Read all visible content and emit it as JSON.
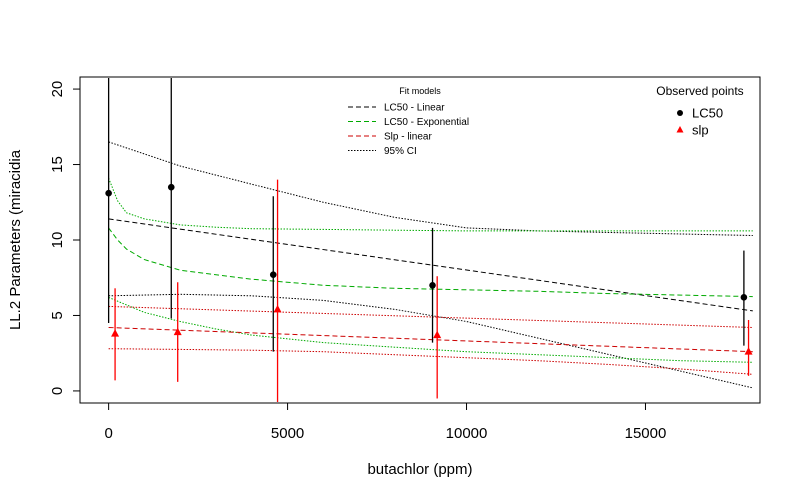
{
  "chart_data": {
    "type": "scatter",
    "title": "",
    "xlabel": "butachlor (ppm)",
    "ylabel": "LL.2 Parameters (miracidia",
    "xlim": [
      -800,
      18200
    ],
    "ylim": [
      -0.8,
      20.8
    ],
    "x_ticks": [
      0,
      5000,
      10000,
      15000
    ],
    "x_tick_labels": [
      "0",
      "5000",
      "10000",
      "15000"
    ],
    "y_ticks": [
      0,
      5,
      10,
      15,
      20
    ],
    "y_tick_labels": [
      "0",
      "5",
      "10",
      "15",
      "20"
    ],
    "grid": false,
    "legend_fit": {
      "title": "Fit models",
      "placement": "top-center",
      "entries": [
        {
          "label": "LC50 - Linear",
          "color": "#000000",
          "style": "dashed"
        },
        {
          "label": "LC50 - Exponential",
          "color": "#00aa00",
          "style": "dashed"
        },
        {
          "label": "Slp - linear",
          "color": "#cc0000",
          "style": "dashed"
        },
        {
          "label": "95% CI",
          "color": "#000000",
          "style": "dotted"
        }
      ]
    },
    "legend_obs": {
      "title": "Observed points",
      "placement": "top-right",
      "entries": [
        {
          "label": "LC50",
          "color": "#000000",
          "marker": "circle"
        },
        {
          "label": "slp",
          "color": "#ff0000",
          "marker": "triangle"
        }
      ]
    },
    "series": [
      {
        "name": "LC50",
        "color": "#000000",
        "marker": "circle",
        "x": [
          0,
          1750,
          4600,
          9050,
          17750
        ],
        "y": [
          13.1,
          13.5,
          7.7,
          7.0,
          6.2
        ],
        "lower": [
          4.5,
          4.8,
          2.6,
          3.2,
          3.0
        ],
        "upper": [
          22.0,
          22.0,
          12.9,
          10.8,
          9.3
        ]
      },
      {
        "name": "slp",
        "color": "#ff0000",
        "marker": "triangle",
        "x": [
          180,
          1930,
          4720,
          9180,
          17880
        ],
        "y": [
          3.8,
          3.9,
          5.4,
          3.7,
          2.6
        ],
        "lower": [
          0.7,
          0.6,
          -1.2,
          -0.5,
          1.0
        ],
        "upper": [
          6.8,
          7.2,
          14.0,
          7.6,
          4.7
        ]
      }
    ],
    "fits": [
      {
        "name": "LC50 - Linear",
        "color": "#000000",
        "dash": "5,3",
        "x": [
          0,
          18000
        ],
        "y": [
          11.4,
          5.3
        ]
      },
      {
        "name": "LC50 - Linear 95% CI upper",
        "color": "#000000",
        "dash": "1.5,1.5",
        "x": [
          0,
          2000,
          4000,
          6000,
          8000,
          10000,
          12000,
          14000,
          16000,
          18000
        ],
        "y": [
          16.5,
          14.9,
          13.7,
          12.5,
          11.5,
          10.8,
          10.6,
          10.5,
          10.4,
          10.3
        ]
      },
      {
        "name": "LC50 - Linear 95% CI lower",
        "color": "#000000",
        "dash": "1.5,1.5",
        "x": [
          0,
          2000,
          4000,
          6000,
          8000,
          10000,
          12000,
          14000,
          16000,
          18000
        ],
        "y": [
          6.3,
          6.4,
          6.3,
          6.0,
          5.4,
          4.6,
          3.5,
          2.4,
          1.3,
          0.2
        ]
      },
      {
        "name": "LC50 - Exponential",
        "color": "#00aa00",
        "dash": "5,3",
        "x": [
          0,
          250,
          500,
          1000,
          2000,
          3000,
          4000,
          6000,
          8000,
          10000,
          12000,
          14000,
          16000,
          18000
        ],
        "y": [
          10.8,
          10.0,
          9.4,
          8.7,
          8.0,
          7.7,
          7.4,
          7.0,
          6.8,
          6.7,
          6.6,
          6.45,
          6.35,
          6.25
        ]
      },
      {
        "name": "LC50 - Exponential 95% CI upper",
        "color": "#00aa00",
        "dash": "1.5,1.5",
        "x": [
          0,
          250,
          500,
          1000,
          2000,
          3000,
          4000,
          6000,
          8000,
          10000,
          12000,
          14000,
          16000,
          18000
        ],
        "y": [
          14.1,
          12.6,
          11.8,
          11.4,
          11.0,
          10.85,
          10.75,
          10.7,
          10.65,
          10.6,
          10.6,
          10.6,
          10.6,
          10.6
        ]
      },
      {
        "name": "LC50 - Exponential 95% CI lower",
        "color": "#00aa00",
        "dash": "1.5,1.5",
        "x": [
          0,
          1000,
          2000,
          3000,
          4000,
          6000,
          8000,
          10000,
          12000,
          14000,
          16000,
          18000
        ],
        "y": [
          6.2,
          5.2,
          4.6,
          4.1,
          3.7,
          3.2,
          2.9,
          2.6,
          2.4,
          2.2,
          2.0,
          1.9
        ]
      },
      {
        "name": "Slp - linear",
        "color": "#cc0000",
        "dash": "5,3",
        "x": [
          0,
          18000
        ],
        "y": [
          4.2,
          2.6
        ]
      },
      {
        "name": "Slp - linear 95% CI upper",
        "color": "#cc0000",
        "dash": "1.5,1.5",
        "x": [
          0,
          18000
        ],
        "y": [
          5.6,
          4.2
        ]
      },
      {
        "name": "Slp - linear 95% CI lower",
        "color": "#cc0000",
        "dash": "1.5,1.5",
        "x": [
          0,
          2000,
          4000,
          6000,
          8000,
          10000,
          12000,
          14000,
          16000,
          18000
        ],
        "y": [
          2.8,
          2.75,
          2.7,
          2.6,
          2.4,
          2.2,
          2.0,
          1.75,
          1.45,
          1.1
        ]
      }
    ]
  }
}
